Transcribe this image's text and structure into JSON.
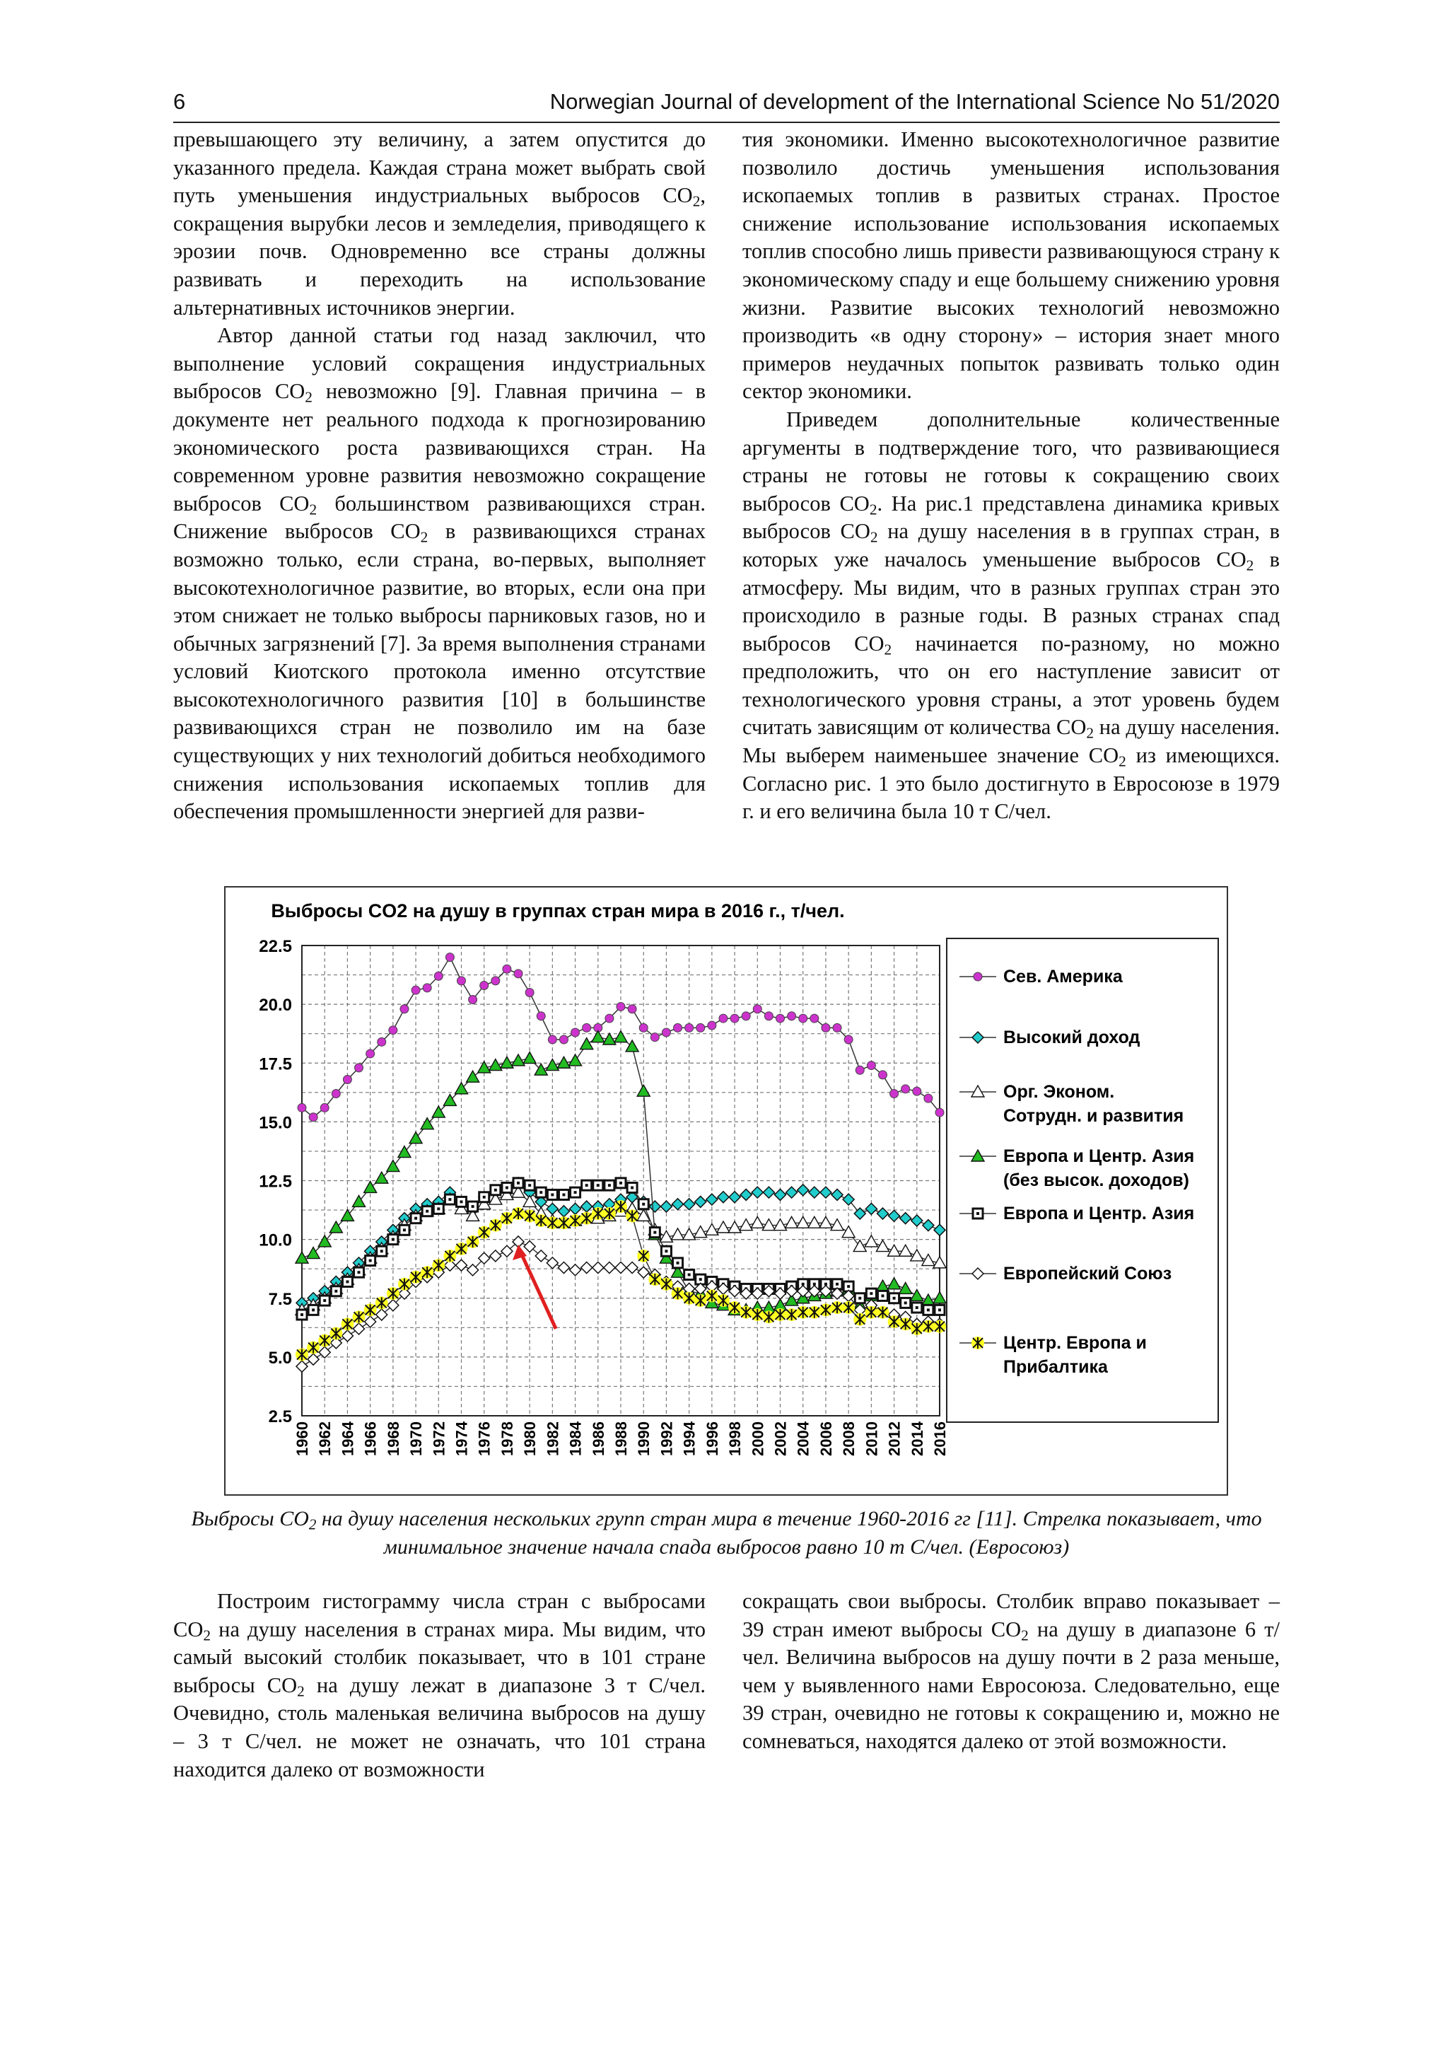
{
  "header": {
    "page_number": "6",
    "journal": "Norwegian Journal of development of the International Science No 51/2020"
  },
  "left_top": {
    "p1": "превышающего эту величину, а затем опустится до указанного предела. Каждая страна может выбрать свой путь уменьшения индустриальных выбросов CO<sub>2</sub>, сокращения вырубки лесов и земледелия, приводящего к эрозии почв. Одновременно все страны должны развивать и переходить на использование альтернативных источников энергии.",
    "p2": "Автор данной статьи год назад заключил, что выполнение условий сокращения индустриальных выбросов CO<sub>2</sub> невозможно [9]. Главная причина – в документе нет реального подхода к прогнозированию экономического роста развивающихся стран. На современном уровне развития невозможно сокращение выбросов CO<sub>2</sub> большинством развивающихся стран. Снижение выбросов CO<sub>2</sub> в развивающихся странах возможно только, если страна, во-первых, выполняет высокотехнологичное развитие, во вторых, если она при этом снижает не только выбросы парниковых газов, но и обычных загрязнений [7]. За время выполнения странами условий Киотского протокола именно отсутствие высокотехнологичного развития [10] в большинстве развивающихся стран не позволило им на базе существующих у них технологий добиться необходимого снижения использования ископаемых топлив для обеспечения промышленности энергией для разви-"
  },
  "right_top": {
    "p1": "тия экономики. Именно высокотехнологичное развитие позволило достичь уменьшения использования ископаемых топлив в развитых странах. Простое снижение использование использования ископаемых топлив способно лишь привести развивающуюся страну к экономическому спаду и еще большему снижению уровня жизни. Развитие высоких технологий невозможно производить «в одну сторону» – история знает много примеров неудачных попыток развивать только один сектор экономики.",
    "p2": "Приведем дополнительные количественные аргументы в подтверждение того, что развивающиеся страны не готовы не готовы к сокращению своих выбросов CO<sub>2</sub>. На рис.1 представлена динамика кривых выбросов CO<sub>2</sub> на душу населения в в группах стран, в которых уже началось уменьшение выбросов CO<sub>2</sub> в атмосферу. Мы видим, что в разных группах стран это происходило в разные годы. В разных странах спад выбросов CO<sub>2</sub> начинается по-разному, но можно предположить, что он его наступление зависит от технологического уровня страны, а этот уровень будем считать зависящим от количества CO<sub>2</sub> на душу населения. Мы выберем наименьшее значение CO<sub>2</sub> из имеющихся. Согласно рис. 1 это было достигнуто в Евросоюзе в 1979 г. и его величина была 10 т С/чел."
  },
  "caption": "Выбросы CO<sub>2</sub> на душу населения нескольких групп стран мира в течение 1960-2016 гг [11]. Стрелка показывает, что минимальное значение начала спада выбросов равно 10 т С/чел. (Евросоюз)",
  "left_bottom": {
    "p1": "Построим гистограмму числа стран с выбросами CO<sub>2</sub> на душу населения в странах мира. Мы видим, что самый высокий столбик показывает, что в 101 стране выбросы CO<sub>2</sub> на душу лежат в диапазоне 3 т С/чел. Очевидно, столь маленькая величина выбросов на душу – 3 т С/чел. не может не означать, что 101 страна находится далеко от возможности"
  },
  "right_bottom": {
    "p1": "сокращать свои выбросы. Столбик вправо показывает – 39 стран имеют выбросы CO<sub>2</sub> на душу в диапазоне 6 т/чел. Величина выбросов на душу почти в 2 раза меньше, чем у выявленного нами Евросоюза. Следовательно, еще 39 стран, очевидно не готовы к сокращению и, можно не сомневаться, находятся далеко от этой возможности."
  },
  "chart_data": {
    "type": "line",
    "title": "Выбросы CO2 на душу в группах стран мира в 2016 г., т/чел.",
    "xlabel": "",
    "ylabel": "",
    "ylim": [
      2.5,
      22.5
    ],
    "yticks": [
      "2.5",
      "5.0",
      "7.5",
      "10.0",
      "12.5",
      "15.0",
      "17.5",
      "20.0",
      "22.5"
    ],
    "xlim": [
      1960,
      2016
    ],
    "xticks": [
      "1960",
      "1962",
      "1964",
      "1966",
      "1968",
      "1970",
      "1972",
      "1974",
      "1976",
      "1978",
      "1980",
      "1982",
      "1984",
      "1986",
      "1988",
      "1990",
      "1992",
      "1994",
      "1996",
      "1998",
      "2000",
      "2002",
      "2004",
      "2006",
      "2008",
      "2010",
      "2012",
      "2014",
      "2016"
    ],
    "grid": true,
    "legend_position": "right",
    "annotation": "red arrow pointing to the 1979 EU minimum (10 t/cap)",
    "arrow_color": "#e02020",
    "series": [
      {
        "name": "Сев.  Америка",
        "marker": "circle",
        "color": "#cc33cc",
        "fill": "#cc33cc",
        "line": "#333333",
        "x_start": 1960,
        "values": [
          15.6,
          15.2,
          15.6,
          16.2,
          16.8,
          17.3,
          17.9,
          18.4,
          18.9,
          19.8,
          20.6,
          20.7,
          21.2,
          22.0,
          21.0,
          20.2,
          20.8,
          21.0,
          21.5,
          21.3,
          20.5,
          19.5,
          18.5,
          18.5,
          18.8,
          19.0,
          19.0,
          19.4,
          19.9,
          19.8,
          19.0,
          18.6,
          18.8,
          19.0,
          19.0,
          19.0,
          19.1,
          19.4,
          19.4,
          19.5,
          19.8,
          19.5,
          19.4,
          19.5,
          19.4,
          19.4,
          19.0,
          19.0,
          18.5,
          17.2,
          17.4,
          17.0,
          16.2,
          16.4,
          16.3,
          16.0,
          15.4
        ]
      },
      {
        "name": "Высокий доход",
        "marker": "diamond",
        "color": "#22cccc",
        "fill": "#22cccc",
        "line": "#333333",
        "x_start": 1960,
        "values": [
          7.3,
          7.5,
          7.8,
          8.2,
          8.6,
          9.0,
          9.5,
          9.9,
          10.4,
          10.9,
          11.3,
          11.5,
          11.6,
          12.0,
          11.6,
          11.3,
          11.8,
          12.0,
          12.2,
          12.4,
          12.0,
          11.6,
          11.3,
          11.2,
          11.3,
          11.4,
          11.4,
          11.5,
          11.7,
          11.8,
          11.6,
          11.4,
          11.4,
          11.5,
          11.5,
          11.6,
          11.7,
          11.8,
          11.8,
          11.9,
          12.0,
          12.0,
          11.9,
          12.0,
          12.1,
          12.0,
          12.0,
          11.9,
          11.7,
          11.1,
          11.3,
          11.1,
          11.0,
          10.9,
          10.8,
          10.6,
          10.4
        ]
      },
      {
        "name": "Орг. Эконом. Сотрудн. и развития",
        "marker": "triangle-open",
        "color": "#000000",
        "fill": "#ffffff",
        "line": "#333333",
        "x_start": 1960,
        "values": [
          7.0,
          7.2,
          7.5,
          7.9,
          8.3,
          8.7,
          9.2,
          9.6,
          10.1,
          10.6,
          11.0,
          11.2,
          11.3,
          11.7,
          11.3,
          11.0,
          11.5,
          11.7,
          11.9,
          12.0,
          11.6,
          11.1,
          10.8,
          10.7,
          10.8,
          10.9,
          10.9,
          11.0,
          11.2,
          11.3,
          11.0,
          10.4,
          10.1,
          10.2,
          10.2,
          10.3,
          10.4,
          10.5,
          10.5,
          10.6,
          10.7,
          10.6,
          10.6,
          10.7,
          10.7,
          10.7,
          10.7,
          10.6,
          10.3,
          9.7,
          9.9,
          9.7,
          9.5,
          9.5,
          9.3,
          9.1,
          9.0
        ]
      },
      {
        "name": "Европа и Центр. Азия (без высок. доходов)",
        "marker": "triangle",
        "color": "#22aa22",
        "fill": "#22bb22",
        "line": "#333333",
        "x_start": 1960,
        "values": [
          9.2,
          9.4,
          9.9,
          10.5,
          11.0,
          11.6,
          12.2,
          12.6,
          13.1,
          13.7,
          14.3,
          14.9,
          15.4,
          15.9,
          16.4,
          16.9,
          17.3,
          17.4,
          17.5,
          17.6,
          17.7,
          17.2,
          17.4,
          17.5,
          17.6,
          18.3,
          18.6,
          18.5,
          18.6,
          18.2,
          16.3,
          10.2,
          9.2,
          8.6,
          7.8,
          7.7,
          7.3,
          7.2,
          7.0,
          7.0,
          7.1,
          7.1,
          7.2,
          7.4,
          7.5,
          7.6,
          7.7,
          7.8,
          7.9,
          7.2,
          7.6,
          8.0,
          8.1,
          7.9,
          7.6,
          7.4,
          7.5
        ]
      },
      {
        "name": "Европа и Центр. Азия",
        "marker": "square-dot",
        "color": "#222222",
        "fill": "#ffffff",
        "line": "#333333",
        "x_start": 1960,
        "values": [
          6.8,
          7.0,
          7.4,
          7.8,
          8.2,
          8.6,
          9.1,
          9.5,
          10.0,
          10.4,
          10.9,
          11.2,
          11.3,
          11.7,
          11.6,
          11.4,
          11.8,
          12.1,
          12.2,
          12.4,
          12.3,
          12.0,
          11.9,
          11.9,
          12.0,
          12.3,
          12.3,
          12.3,
          12.4,
          12.2,
          11.5,
          10.3,
          9.5,
          9.0,
          8.5,
          8.3,
          8.2,
          8.1,
          8.0,
          7.9,
          7.9,
          7.9,
          7.9,
          8.0,
          8.1,
          8.1,
          8.1,
          8.1,
          8.0,
          7.5,
          7.7,
          7.6,
          7.5,
          7.3,
          7.1,
          7.0,
          7.0
        ]
      },
      {
        "name": "Европейский Союз",
        "marker": "diamond-open",
        "color": "#000000",
        "fill": "#ffffff",
        "line": "#333333",
        "x_start": 1960,
        "values": [
          4.6,
          4.9,
          5.2,
          5.6,
          5.9,
          6.2,
          6.5,
          6.8,
          7.2,
          7.7,
          8.2,
          8.4,
          8.6,
          8.9,
          8.9,
          8.7,
          9.2,
          9.3,
          9.5,
          9.9,
          9.7,
          9.3,
          9.0,
          8.8,
          8.7,
          8.8,
          8.8,
          8.8,
          8.8,
          8.8,
          8.6,
          8.5,
          8.2,
          8.0,
          7.9,
          7.9,
          8.0,
          7.9,
          7.8,
          7.7,
          7.7,
          7.8,
          7.7,
          7.8,
          7.8,
          7.8,
          7.8,
          7.7,
          7.6,
          7.0,
          7.2,
          6.9,
          6.8,
          6.7,
          6.4,
          6.5,
          6.4
        ]
      },
      {
        "name": "Центр. Европа и Прибалтика",
        "marker": "star",
        "color": "#222222",
        "fill": "#ffff22",
        "line": "#333333",
        "x_start": 1960,
        "values": [
          5.1,
          5.4,
          5.7,
          6.0,
          6.4,
          6.7,
          7.0,
          7.3,
          7.7,
          8.1,
          8.4,
          8.6,
          8.9,
          9.3,
          9.6,
          9.9,
          10.3,
          10.6,
          10.9,
          11.1,
          11.0,
          10.8,
          10.7,
          10.7,
          10.8,
          10.9,
          11.1,
          11.1,
          11.4,
          11.0,
          9.3,
          8.3,
          8.1,
          7.7,
          7.5,
          7.4,
          7.6,
          7.4,
          7.1,
          6.9,
          6.8,
          6.7,
          6.8,
          6.8,
          6.9,
          6.9,
          7.0,
          7.1,
          7.1,
          6.6,
          6.9,
          6.9,
          6.5,
          6.4,
          6.2,
          6.3,
          6.3
        ]
      }
    ]
  }
}
